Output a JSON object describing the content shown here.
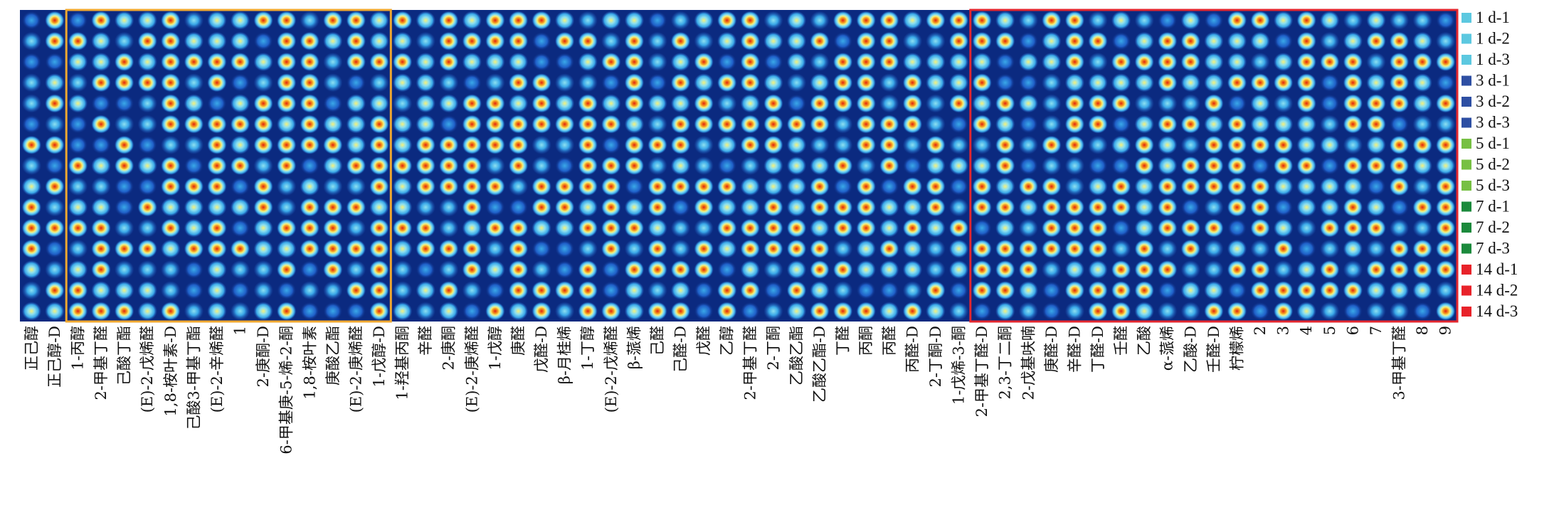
{
  "chart_data": {
    "type": "heatmap",
    "title": "",
    "xlabel": "",
    "ylabel": "",
    "rows": [
      "1 d-1",
      "1 d-2",
      "1 d-3",
      "3 d-1",
      "3 d-2",
      "3 d-3",
      "5 d-1",
      "5 d-2",
      "5 d-3",
      "7 d-1",
      "7 d-2",
      "7 d-3",
      "14 d-1",
      "14 d-2",
      "14 d-3"
    ],
    "row_colors": [
      "#5cc8e0",
      "#5cc8e0",
      "#5cc8e0",
      "#2e4fa3",
      "#2e4fa3",
      "#2e4fa3",
      "#77c043",
      "#77c043",
      "#77c043",
      "#1b8a3c",
      "#1b8a3c",
      "#1b8a3c",
      "#e8222a",
      "#e8222a",
      "#e8222a"
    ],
    "columns": [
      "正己醇",
      "正己醇-D",
      "1-丙醇",
      "2-甲基丁醛",
      "己酸丁酯",
      "(E)-2-戊烯醛",
      "1,8-桉叶素-D",
      "己酸3-甲基丁酯",
      "(E)-2-辛烯醛",
      "1",
      "2-庚酮-D",
      "6-甲基庚-5-烯-2-酮",
      "1,8-桉叶素",
      "庚酸乙酯",
      "(E)-2-庚烯醛",
      "1-戊醇-D",
      "1-羟基丙酮",
      "辛醛",
      "2-庚酮",
      "(E)-2-庚烯醛",
      "1-戊醇",
      "庚醛",
      "戊醛-D",
      "β-月桂烯",
      "1-丁醇",
      "(E)-2-戊烯醛",
      "β-蒎烯",
      "己醛",
      "己醛-D",
      "戊醛",
      "乙醇",
      "2-甲基丁醛",
      "2-丁酮",
      "乙酸乙酯",
      "乙酸乙酯-D",
      "丁醛",
      "丙酮",
      "丙醛",
      "丙醛-D",
      "2-丁酮-D",
      "1-戊烯-3-酮",
      "2-甲基丁醛-D",
      "2,3-丁二酮",
      "2-戊基呋喃",
      "庚醛-D",
      "辛醛-D",
      "丁醛-D",
      "壬醛",
      "乙酸",
      "α-蒎烯",
      "乙酸-D",
      "壬醛-D",
      "柠檬烯",
      "2",
      "3",
      "4",
      "5",
      "6",
      "7",
      "3-甲基丁醛",
      "8",
      "9"
    ],
    "groups": [
      {
        "box_color": "#f0a830",
        "first": "1-丙醇",
        "last": "1-戊醇-D"
      },
      {
        "box_color": "#e3262e",
        "first": "2-甲基丁醛-D",
        "last": "9"
      }
    ],
    "colormap": [
      "#06082e",
      "#0b2a80",
      "#1f5fc8",
      "#3aa8e8",
      "#8de0f0",
      "#f5f07a",
      "#f5a020",
      "#e02010"
    ]
  }
}
